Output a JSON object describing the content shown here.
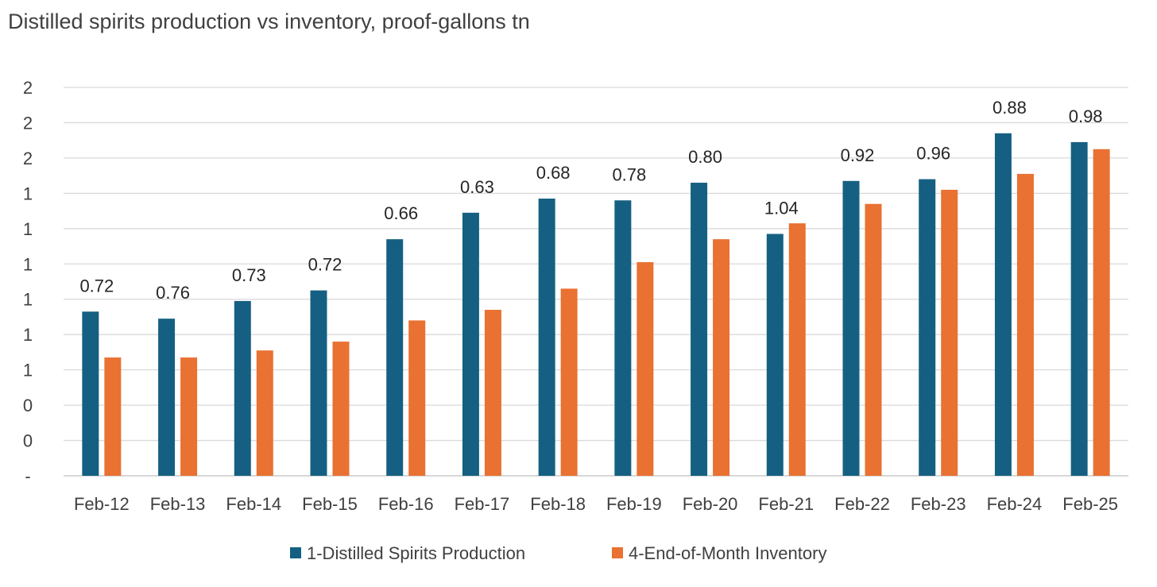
{
  "chart_data": {
    "type": "bar",
    "title": "Distilled spirits production vs inventory, proof-gallons tn",
    "xlabel": "",
    "ylabel": "",
    "categories": [
      "Feb-12",
      "Feb-13",
      "Feb-14",
      "Feb-15",
      "Feb-16",
      "Feb-17",
      "Feb-18",
      "Feb-19",
      "Feb-20",
      "Feb-21",
      "Feb-22",
      "Feb-23",
      "Feb-24",
      "Feb-25"
    ],
    "y_tick_labels": [
      "-",
      "0",
      "0",
      "1",
      "1",
      "1",
      "1",
      "1",
      "1",
      "2",
      "2",
      "2"
    ],
    "ylim": [
      0,
      2.2
    ],
    "y_tick_step": 0.2,
    "series": [
      {
        "name": "1-Distilled Spirits Production",
        "color": "#156082",
        "values": [
          0.93,
          0.89,
          0.99,
          1.05,
          1.34,
          1.49,
          1.57,
          1.56,
          1.66,
          1.37,
          1.67,
          1.68,
          1.94,
          1.89
        ]
      },
      {
        "name": "4-End-of-Month Inventory",
        "color": "#E97132",
        "values": [
          0.67,
          0.67,
          0.71,
          0.76,
          0.88,
          0.94,
          1.06,
          1.21,
          1.34,
          1.43,
          1.54,
          1.62,
          1.71,
          1.85
        ]
      }
    ],
    "data_labels": [
      "0.72",
      "0.76",
      "0.73",
      "0.72",
      "0.66",
      "0.63",
      "0.68",
      "0.78",
      "0.80",
      "1.04",
      "0.92",
      "0.96",
      "0.88",
      "0.98"
    ],
    "grid": true,
    "legend": "bottom"
  }
}
